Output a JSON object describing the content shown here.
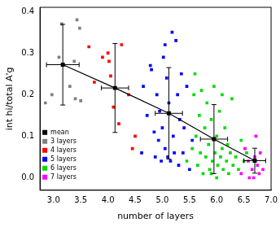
{
  "chart_data": {
    "type": "scatter",
    "x_label": "number of layers",
    "y_label": "int hi/total A'g",
    "xlim": [
      2.75,
      7.0
    ],
    "xticks": [
      {
        "value": 3.0,
        "label": "3.0"
      },
      {
        "value": 3.5,
        "label": "3.5"
      },
      {
        "value": 4.0,
        "label": "4.0"
      },
      {
        "value": 4.5,
        "label": "4.5"
      },
      {
        "value": 5.0,
        "label": "5.0"
      },
      {
        "value": 5.5,
        "label": "5.5"
      },
      {
        "value": 6.0,
        "label": "6.0"
      },
      {
        "value": 6.5,
        "label": "6.5"
      },
      {
        "value": 7.0,
        "label": "7.0"
      }
    ],
    "ylim": [
      -0.03,
      0.41
    ],
    "yticks": [
      {
        "value": 0.0,
        "label": "0.0"
      },
      0.1,
      0.2,
      0.3,
      0.4
    ],
    "grid": false,
    "legend": "upper right",
    "series": [
      {
        "name": "mean",
        "type": "line",
        "color": "#000000",
        "marker": "square",
        "line_style": "solid",
        "x": [
          3.17,
          4.13,
          5.12,
          5.95,
          6.7
        ],
        "values": [
          0.272,
          0.216,
          0.155,
          0.093,
          0.041
        ],
        "x_errors": [
          0.3,
          0.25,
          0.25,
          0.25,
          0.2
        ],
        "y_errors": [
          0.097,
          0.107,
          0.11,
          0.083,
          0.03
        ]
      },
      {
        "name": "3 layers",
        "color": "#808080",
        "marker": "square",
        "x": [
          2.85,
          2.97,
          3.1,
          3.15,
          3.3,
          3.38,
          3.4,
          3.43,
          3.48,
          3.5
        ],
        "values": [
          0.18,
          0.2,
          0.29,
          0.37,
          0.22,
          0.28,
          0.19,
          0.38,
          0.36,
          0.185
        ]
      },
      {
        "name": "4 layers",
        "color": "#ff0000",
        "marker": "square",
        "x": [
          3.65,
          3.75,
          3.9,
          4.0,
          4.02,
          4.05,
          4.1,
          4.2,
          4.25,
          4.38,
          4.45,
          4.5
        ],
        "values": [
          0.315,
          0.23,
          0.29,
          0.3,
          0.28,
          0.245,
          0.17,
          0.13,
          0.32,
          0.2,
          0.07,
          0.1
        ]
      },
      {
        "name": "5 layers",
        "color": "#0000ff",
        "marker": "square",
        "x": [
          4.62,
          4.65,
          4.72,
          4.78,
          4.8,
          4.85,
          4.87,
          4.9,
          4.93,
          4.95,
          4.98,
          5.0,
          5.02,
          5.05,
          5.08,
          5.1,
          5.12,
          5.15,
          5.18,
          5.2,
          5.22,
          5.25,
          5.28,
          5.3,
          5.32,
          5.35,
          5.38,
          5.4,
          5.45,
          5.5,
          5.55,
          5.05
        ],
        "values": [
          0.06,
          0.22,
          0.15,
          0.27,
          0.26,
          0.11,
          0.05,
          0.2,
          0.09,
          0.16,
          0.04,
          0.12,
          0.29,
          0.07,
          0.24,
          0.05,
          0.18,
          0.04,
          0.35,
          0.1,
          0.06,
          0.33,
          0.2,
          0.03,
          0.14,
          0.25,
          0.06,
          0.12,
          0.22,
          0.02,
          0.09,
          0.32
        ]
      },
      {
        "name": "6 layers",
        "color": "#00dd00",
        "marker": "square",
        "x": [
          5.45,
          5.55,
          5.58,
          5.6,
          5.62,
          5.65,
          5.68,
          5.7,
          5.72,
          5.75,
          5.78,
          5.8,
          5.82,
          5.85,
          5.87,
          5.9,
          5.92,
          5.95,
          5.97,
          6.0,
          6.02,
          6.05,
          6.07,
          6.1,
          6.12,
          6.15,
          6.18,
          6.2,
          6.22,
          6.25,
          6.28,
          6.3,
          6.35,
          6.4,
          6.45,
          6.5,
          6.55,
          5.9,
          6.0,
          6.1
        ],
        "values": [
          0.04,
          0.07,
          0.2,
          0.25,
          0.1,
          0.03,
          0.15,
          0.06,
          0.21,
          0.01,
          0.12,
          0.05,
          0.18,
          0.08,
          0.02,
          0.14,
          0.04,
          0.22,
          0.06,
          0.1,
          0.03,
          0.16,
          0.05,
          0.07,
          0.02,
          0.12,
          0.04,
          0.08,
          0.01,
          0.06,
          0.19,
          0.03,
          0.05,
          0.02,
          0.09,
          0.04,
          0.06,
          0.01,
          0.0,
          0.2
        ]
      },
      {
        "name": "7 layers",
        "color": "#ff00ff",
        "marker": "square",
        "x": [
          6.45,
          6.52,
          6.58,
          6.6,
          6.65,
          6.7,
          6.72,
          6.75,
          6.78,
          6.8,
          6.85,
          6.68
        ],
        "values": [
          0.01,
          0.07,
          0.04,
          0.0,
          0.02,
          0.05,
          0.1,
          0.03,
          0.01,
          0.06,
          0.02,
          0.0
        ]
      }
    ]
  }
}
